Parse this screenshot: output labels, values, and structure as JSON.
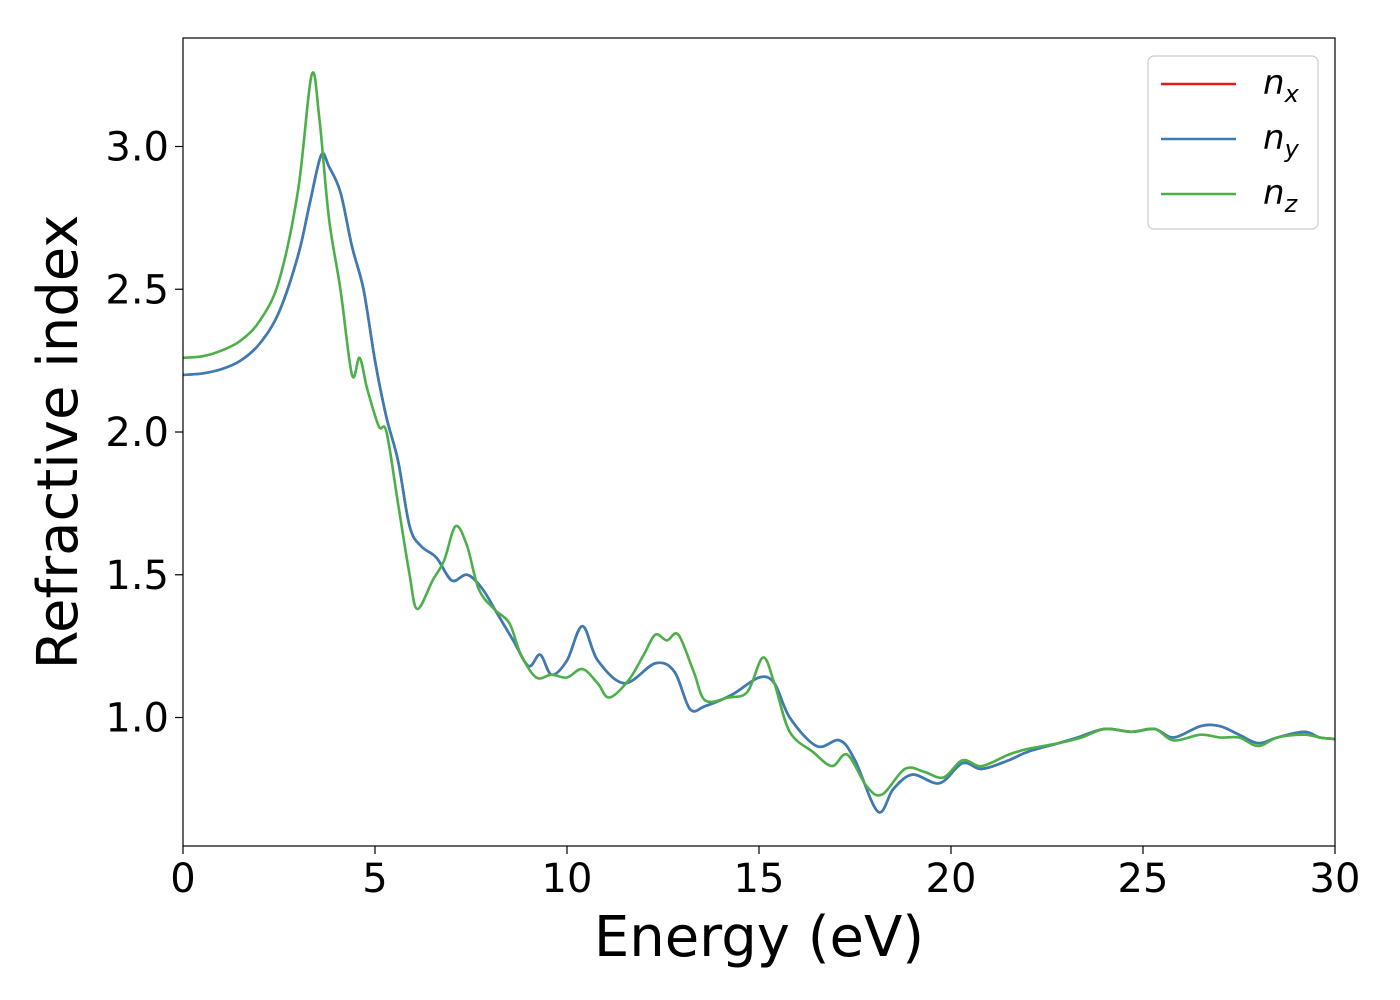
{
  "chart_data": {
    "type": "line",
    "xlabel": "Energy (eV)",
    "ylabel": "Refractive index",
    "xlim": [
      0,
      30
    ],
    "ylim": [
      0.55,
      3.38
    ],
    "xticks": [
      "0",
      "5",
      "10",
      "15",
      "20",
      "25",
      "30"
    ],
    "yticks": [
      "1.0",
      "1.5",
      "2.0",
      "2.5",
      "3.0"
    ],
    "legend_position": "top-right",
    "grid": false,
    "series": [
      {
        "name": "n",
        "subscript": "x",
        "color": "#e41a1c",
        "points": [
          [
            0,
            2.2
          ],
          [
            0.5,
            2.205
          ],
          [
            1,
            2.22
          ],
          [
            1.5,
            2.25
          ],
          [
            2,
            2.31
          ],
          [
            2.5,
            2.42
          ],
          [
            3,
            2.62
          ],
          [
            3.3,
            2.8
          ],
          [
            3.6,
            2.97
          ],
          [
            3.8,
            2.93
          ],
          [
            4.1,
            2.84
          ],
          [
            4.4,
            2.65
          ],
          [
            4.7,
            2.5
          ],
          [
            5,
            2.25
          ],
          [
            5.3,
            2.05
          ],
          [
            5.6,
            1.9
          ],
          [
            5.9,
            1.67
          ],
          [
            6.2,
            1.6
          ],
          [
            6.6,
            1.56
          ],
          [
            7,
            1.48
          ],
          [
            7.4,
            1.5
          ],
          [
            7.8,
            1.45
          ],
          [
            8.2,
            1.36
          ],
          [
            8.6,
            1.27
          ],
          [
            9,
            1.18
          ],
          [
            9.3,
            1.22
          ],
          [
            9.6,
            1.15
          ],
          [
            10,
            1.2
          ],
          [
            10.4,
            1.32
          ],
          [
            10.8,
            1.2
          ],
          [
            11.5,
            1.12
          ],
          [
            12.3,
            1.19
          ],
          [
            12.8,
            1.16
          ],
          [
            13.2,
            1.03
          ],
          [
            13.6,
            1.04
          ],
          [
            14.3,
            1.08
          ],
          [
            15,
            1.14
          ],
          [
            15.4,
            1.12
          ],
          [
            15.8,
            1.0
          ],
          [
            16.5,
            0.9
          ],
          [
            17.1,
            0.92
          ],
          [
            17.5,
            0.85
          ],
          [
            18.1,
            0.67
          ],
          [
            18.5,
            0.75
          ],
          [
            19,
            0.8
          ],
          [
            19.7,
            0.77
          ],
          [
            20.3,
            0.84
          ],
          [
            20.8,
            0.82
          ],
          [
            21.5,
            0.85
          ],
          [
            22,
            0.88
          ],
          [
            22.8,
            0.91
          ],
          [
            23.3,
            0.93
          ],
          [
            24,
            0.96
          ],
          [
            24.7,
            0.95
          ],
          [
            25.3,
            0.96
          ],
          [
            25.8,
            0.93
          ],
          [
            26.5,
            0.97
          ],
          [
            27,
            0.97
          ],
          [
            27.5,
            0.94
          ],
          [
            28,
            0.91
          ],
          [
            28.5,
            0.93
          ],
          [
            29.2,
            0.95
          ],
          [
            29.6,
            0.93
          ],
          [
            30,
            0.925
          ]
        ]
      },
      {
        "name": "n",
        "subscript": "y",
        "color": "#377eb8",
        "points": [
          [
            0,
            2.2
          ],
          [
            0.5,
            2.205
          ],
          [
            1,
            2.22
          ],
          [
            1.5,
            2.25
          ],
          [
            2,
            2.31
          ],
          [
            2.5,
            2.42
          ],
          [
            3,
            2.62
          ],
          [
            3.3,
            2.8
          ],
          [
            3.6,
            2.97
          ],
          [
            3.8,
            2.93
          ],
          [
            4.1,
            2.84
          ],
          [
            4.4,
            2.65
          ],
          [
            4.7,
            2.5
          ],
          [
            5,
            2.25
          ],
          [
            5.3,
            2.05
          ],
          [
            5.6,
            1.9
          ],
          [
            5.9,
            1.67
          ],
          [
            6.2,
            1.6
          ],
          [
            6.6,
            1.56
          ],
          [
            7,
            1.48
          ],
          [
            7.4,
            1.5
          ],
          [
            7.8,
            1.45
          ],
          [
            8.2,
            1.36
          ],
          [
            8.6,
            1.27
          ],
          [
            9,
            1.18
          ],
          [
            9.3,
            1.22
          ],
          [
            9.6,
            1.15
          ],
          [
            10,
            1.2
          ],
          [
            10.4,
            1.32
          ],
          [
            10.8,
            1.2
          ],
          [
            11.5,
            1.12
          ],
          [
            12.3,
            1.19
          ],
          [
            12.8,
            1.16
          ],
          [
            13.2,
            1.03
          ],
          [
            13.6,
            1.04
          ],
          [
            14.3,
            1.08
          ],
          [
            15,
            1.14
          ],
          [
            15.4,
            1.12
          ],
          [
            15.8,
            1.0
          ],
          [
            16.5,
            0.9
          ],
          [
            17.1,
            0.92
          ],
          [
            17.5,
            0.85
          ],
          [
            18.1,
            0.67
          ],
          [
            18.5,
            0.75
          ],
          [
            19,
            0.8
          ],
          [
            19.7,
            0.77
          ],
          [
            20.3,
            0.84
          ],
          [
            20.8,
            0.82
          ],
          [
            21.5,
            0.85
          ],
          [
            22,
            0.88
          ],
          [
            22.8,
            0.91
          ],
          [
            23.3,
            0.93
          ],
          [
            24,
            0.96
          ],
          [
            24.7,
            0.95
          ],
          [
            25.3,
            0.96
          ],
          [
            25.8,
            0.93
          ],
          [
            26.5,
            0.97
          ],
          [
            27,
            0.97
          ],
          [
            27.5,
            0.94
          ],
          [
            28,
            0.91
          ],
          [
            28.5,
            0.93
          ],
          [
            29.2,
            0.95
          ],
          [
            29.6,
            0.93
          ],
          [
            30,
            0.925
          ]
        ]
      },
      {
        "name": "n",
        "subscript": "z",
        "color": "#4daf4a",
        "points": [
          [
            0,
            2.26
          ],
          [
            0.5,
            2.265
          ],
          [
            1,
            2.285
          ],
          [
            1.5,
            2.32
          ],
          [
            2,
            2.39
          ],
          [
            2.5,
            2.53
          ],
          [
            3,
            2.85
          ],
          [
            3.35,
            3.25
          ],
          [
            3.55,
            3.1
          ],
          [
            3.8,
            2.75
          ],
          [
            4.1,
            2.5
          ],
          [
            4.4,
            2.2
          ],
          [
            4.6,
            2.26
          ],
          [
            4.8,
            2.15
          ],
          [
            5.1,
            2.02
          ],
          [
            5.3,
            2.0
          ],
          [
            5.6,
            1.75
          ],
          [
            5.9,
            1.5
          ],
          [
            6.1,
            1.38
          ],
          [
            6.5,
            1.48
          ],
          [
            6.8,
            1.55
          ],
          [
            7.1,
            1.67
          ],
          [
            7.4,
            1.6
          ],
          [
            7.7,
            1.45
          ],
          [
            8.1,
            1.38
          ],
          [
            8.5,
            1.33
          ],
          [
            8.8,
            1.22
          ],
          [
            9.2,
            1.14
          ],
          [
            9.6,
            1.15
          ],
          [
            10,
            1.14
          ],
          [
            10.4,
            1.17
          ],
          [
            10.8,
            1.12
          ],
          [
            11.1,
            1.07
          ],
          [
            11.6,
            1.13
          ],
          [
            12,
            1.22
          ],
          [
            12.3,
            1.29
          ],
          [
            12.6,
            1.27
          ],
          [
            12.9,
            1.29
          ],
          [
            13.3,
            1.16
          ],
          [
            13.6,
            1.06
          ],
          [
            14.2,
            1.07
          ],
          [
            14.7,
            1.09
          ],
          [
            15.1,
            1.21
          ],
          [
            15.4,
            1.12
          ],
          [
            15.8,
            0.95
          ],
          [
            16.4,
            0.88
          ],
          [
            16.9,
            0.83
          ],
          [
            17.3,
            0.87
          ],
          [
            17.8,
            0.76
          ],
          [
            18.2,
            0.73
          ],
          [
            18.8,
            0.82
          ],
          [
            19.3,
            0.81
          ],
          [
            19.8,
            0.79
          ],
          [
            20.3,
            0.85
          ],
          [
            20.8,
            0.83
          ],
          [
            21.5,
            0.87
          ],
          [
            22,
            0.89
          ],
          [
            22.8,
            0.91
          ],
          [
            23.4,
            0.93
          ],
          [
            24,
            0.96
          ],
          [
            24.7,
            0.95
          ],
          [
            25.3,
            0.96
          ],
          [
            25.8,
            0.92
          ],
          [
            26.5,
            0.94
          ],
          [
            27,
            0.93
          ],
          [
            27.5,
            0.93
          ],
          [
            28,
            0.9
          ],
          [
            28.5,
            0.93
          ],
          [
            29.2,
            0.94
          ],
          [
            29.6,
            0.93
          ],
          [
            30,
            0.925
          ]
        ]
      }
    ]
  }
}
